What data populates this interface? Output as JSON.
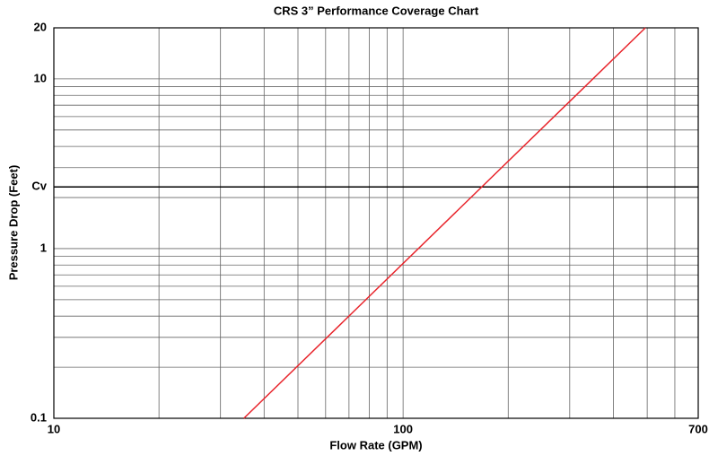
{
  "chart_data": {
    "type": "line",
    "title": "CRS 3” Performance Coverage Chart",
    "x_label": "Flow Rate (GPM)",
    "y_label": "Pressure Drop (Feet)",
    "x": [
      35,
      494
    ],
    "series": [
      {
        "name": "CRS 3”",
        "color": "#e8232a",
        "values": [
          0.1,
          20
        ]
      }
    ],
    "xlog": true,
    "ylog": true,
    "xlim": [
      10,
      700
    ],
    "ylim": [
      0.1,
      20
    ],
    "xticks": [
      10,
      100,
      700
    ],
    "yticks": [
      0.1,
      1,
      {
        "value": 2.31,
        "label": "Cv"
      },
      10,
      20
    ],
    "xgrid": [
      20,
      30,
      40,
      50,
      60,
      70,
      80,
      90,
      100,
      200,
      300,
      400,
      500,
      600
    ],
    "ygrid": [
      0.2,
      0.3,
      0.4,
      0.5,
      0.6,
      0.7,
      0.8,
      0.9,
      1,
      2,
      3,
      4,
      5,
      6,
      7,
      8,
      9,
      10
    ],
    "grid": true
  }
}
